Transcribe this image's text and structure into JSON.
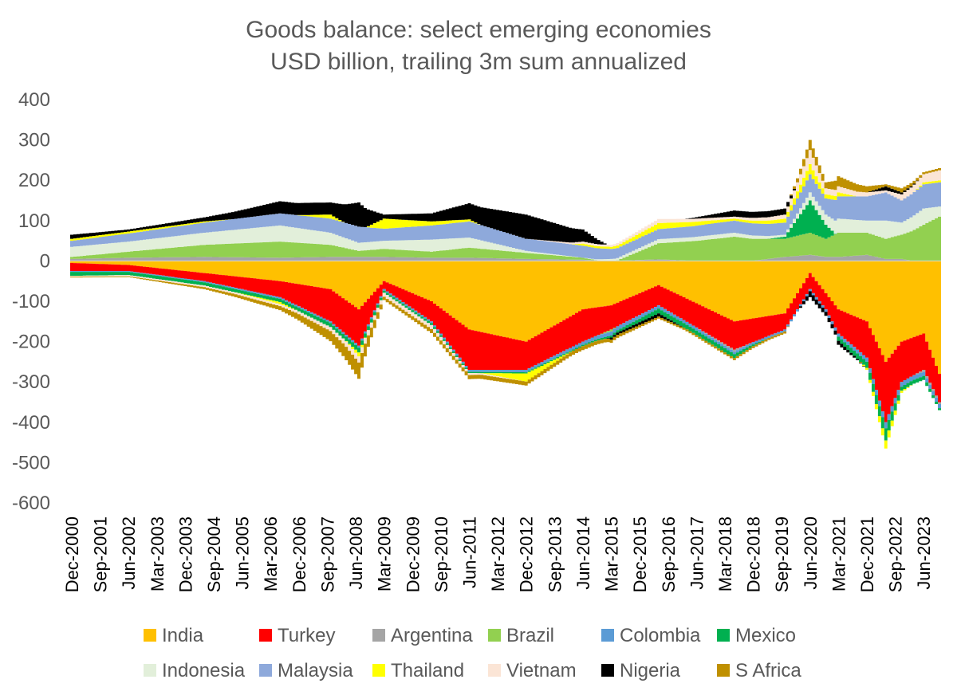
{
  "chart_data": {
    "type": "area",
    "stacking": "diverging (positive balances stacked above zero, negative balances stacked below zero)",
    "title": "Goods balance: select emerging economies",
    "subtitle": "USD billion, trailing 3m sum annualized",
    "xlabel": "",
    "ylabel": "",
    "ylim": [
      -600,
      400
    ],
    "yticks": [
      400,
      300,
      200,
      100,
      0,
      -100,
      -200,
      -300,
      -400,
      -500,
      -600
    ],
    "x_tick_labels": [
      "Dec-2000",
      "Sep-2001",
      "Jun-2002",
      "Mar-2003",
      "Dec-2003",
      "Sep-2004",
      "Jun-2005",
      "Mar-2006",
      "Dec-2006",
      "Sep-2007",
      "Jun-2008",
      "Mar-2009",
      "Dec-2009",
      "Sep-2010",
      "Jun-2011",
      "Mar-2012",
      "Dec-2012",
      "Sep-2013",
      "Jun-2014",
      "Mar-2015",
      "Dec-2015",
      "Sep-2016",
      "Jun-2017",
      "Mar-2018",
      "Dec-2018",
      "Sep-2019",
      "Jun-2020",
      "Mar-2021",
      "Dec-2021",
      "Sep-2022",
      "Jun-2023"
    ],
    "x_start": "Dec-2000",
    "x_end": "Nov-2023",
    "x_step": "month",
    "grid": false,
    "legend_position": "bottom",
    "points": [
      "2000-12",
      "2002-06",
      "2004-06",
      "2006-06",
      "2007-10",
      "2008-07",
      "2009-03",
      "2010-06",
      "2011-06",
      "2012-12",
      "2014-06",
      "2015-03",
      "2016-06",
      "2018-06",
      "2019-10",
      "2020-06",
      "2020-11",
      "2021-03",
      "2021-12",
      "2022-06",
      "2022-11",
      "2023-06",
      "2023-11"
    ],
    "series": [
      {
        "name": "India",
        "color": "#FFC000",
        "values": [
          -5,
          -10,
          -30,
          -50,
          -70,
          -120,
          -50,
          -100,
          -170,
          -200,
          -120,
          -110,
          -60,
          -150,
          -130,
          -30,
          -80,
          -120,
          -150,
          -250,
          -200,
          -180,
          -280
        ]
      },
      {
        "name": "Turkey",
        "color": "#FF0000",
        "values": [
          -20,
          -15,
          -20,
          -40,
          -80,
          -90,
          -20,
          -50,
          -100,
          -70,
          -80,
          -60,
          -50,
          -70,
          -40,
          -40,
          -40,
          -60,
          -90,
          -150,
          -100,
          -90,
          -70
        ]
      },
      {
        "name": "Argentina",
        "color": "#A5A5A5",
        "values": [
          5,
          8,
          10,
          8,
          10,
          10,
          10,
          8,
          8,
          5,
          3,
          0,
          4,
          -5,
          10,
          15,
          10,
          10,
          15,
          5,
          5,
          -5,
          -5
        ]
      },
      {
        "name": "Brazil",
        "color": "#92D050",
        "values": [
          5,
          15,
          30,
          40,
          30,
          15,
          20,
          15,
          25,
          15,
          5,
          -5,
          40,
          60,
          45,
          55,
          45,
          60,
          55,
          50,
          60,
          90,
          110
        ]
      },
      {
        "name": "Colombia",
        "color": "#5B9BD5",
        "values": [
          -2,
          -2,
          -3,
          -4,
          -4,
          -5,
          -4,
          -4,
          -5,
          -6,
          -8,
          -10,
          -8,
          -6,
          -5,
          -5,
          -6,
          -8,
          -10,
          -15,
          -12,
          -10,
          -10
        ]
      },
      {
        "name": "Mexico",
        "color": "#00B050",
        "values": [
          -10,
          -8,
          -8,
          -8,
          -10,
          -12,
          -5,
          -5,
          -3,
          -3,
          -3,
          -5,
          -12,
          -10,
          5,
          80,
          35,
          -10,
          -15,
          -30,
          -10,
          -10,
          -5
        ]
      },
      {
        "name": "Indonesia",
        "color": "#E2EFDA",
        "values": [
          25,
          25,
          30,
          40,
          30,
          20,
          20,
          30,
          25,
          5,
          0,
          5,
          10,
          10,
          5,
          20,
          25,
          35,
          30,
          45,
          30,
          40,
          25
        ]
      },
      {
        "name": "Malaysia",
        "color": "#8EA9DB",
        "values": [
          15,
          20,
          25,
          30,
          35,
          40,
          30,
          35,
          40,
          30,
          30,
          25,
          25,
          30,
          30,
          45,
          40,
          55,
          60,
          70,
          55,
          60,
          60
        ]
      },
      {
        "name": "Thailand",
        "color": "#FFFF00",
        "values": [
          5,
          5,
          3,
          -5,
          10,
          -10,
          25,
          10,
          5,
          -20,
          5,
          5,
          15,
          5,
          10,
          25,
          10,
          10,
          -5,
          -20,
          -5,
          5,
          5
        ]
      },
      {
        "name": "Vietnam",
        "color": "#FBE5D6",
        "values": [
          -2,
          -3,
          -4,
          -5,
          -10,
          -15,
          -10,
          -10,
          -5,
          0,
          5,
          5,
          10,
          5,
          10,
          35,
          15,
          15,
          10,
          5,
          15,
          20,
          25
        ]
      },
      {
        "name": "Nigeria",
        "color": "#000000",
        "values": [
          10,
          5,
          10,
          30,
          30,
          60,
          10,
          20,
          40,
          60,
          30,
          -5,
          -8,
          15,
          15,
          -15,
          -10,
          -10,
          0,
          10,
          5,
          0,
          0
        ]
      },
      {
        "name": "S Africa",
        "color": "#BF9000",
        "values": [
          -2,
          -2,
          -5,
          -10,
          -25,
          -40,
          -8,
          -10,
          -10,
          -10,
          -10,
          -8,
          -5,
          -5,
          -5,
          25,
          15,
          25,
          15,
          5,
          10,
          5,
          5
        ]
      }
    ]
  },
  "legend": {
    "items": [
      {
        "label": "India",
        "color": "#FFC000"
      },
      {
        "label": "Turkey",
        "color": "#FF0000"
      },
      {
        "label": "Argentina",
        "color": "#A5A5A5"
      },
      {
        "label": "Brazil",
        "color": "#92D050"
      },
      {
        "label": "Colombia",
        "color": "#5B9BD5"
      },
      {
        "label": "Mexico",
        "color": "#00B050"
      },
      {
        "label": "Indonesia",
        "color": "#E2EFDA"
      },
      {
        "label": "Malaysia",
        "color": "#8EA9DB"
      },
      {
        "label": "Thailand",
        "color": "#FFFF00"
      },
      {
        "label": "Vietnam",
        "color": "#FBE5D6"
      },
      {
        "label": "Nigeria",
        "color": "#000000"
      },
      {
        "label": "S Africa",
        "color": "#BF9000"
      }
    ]
  }
}
